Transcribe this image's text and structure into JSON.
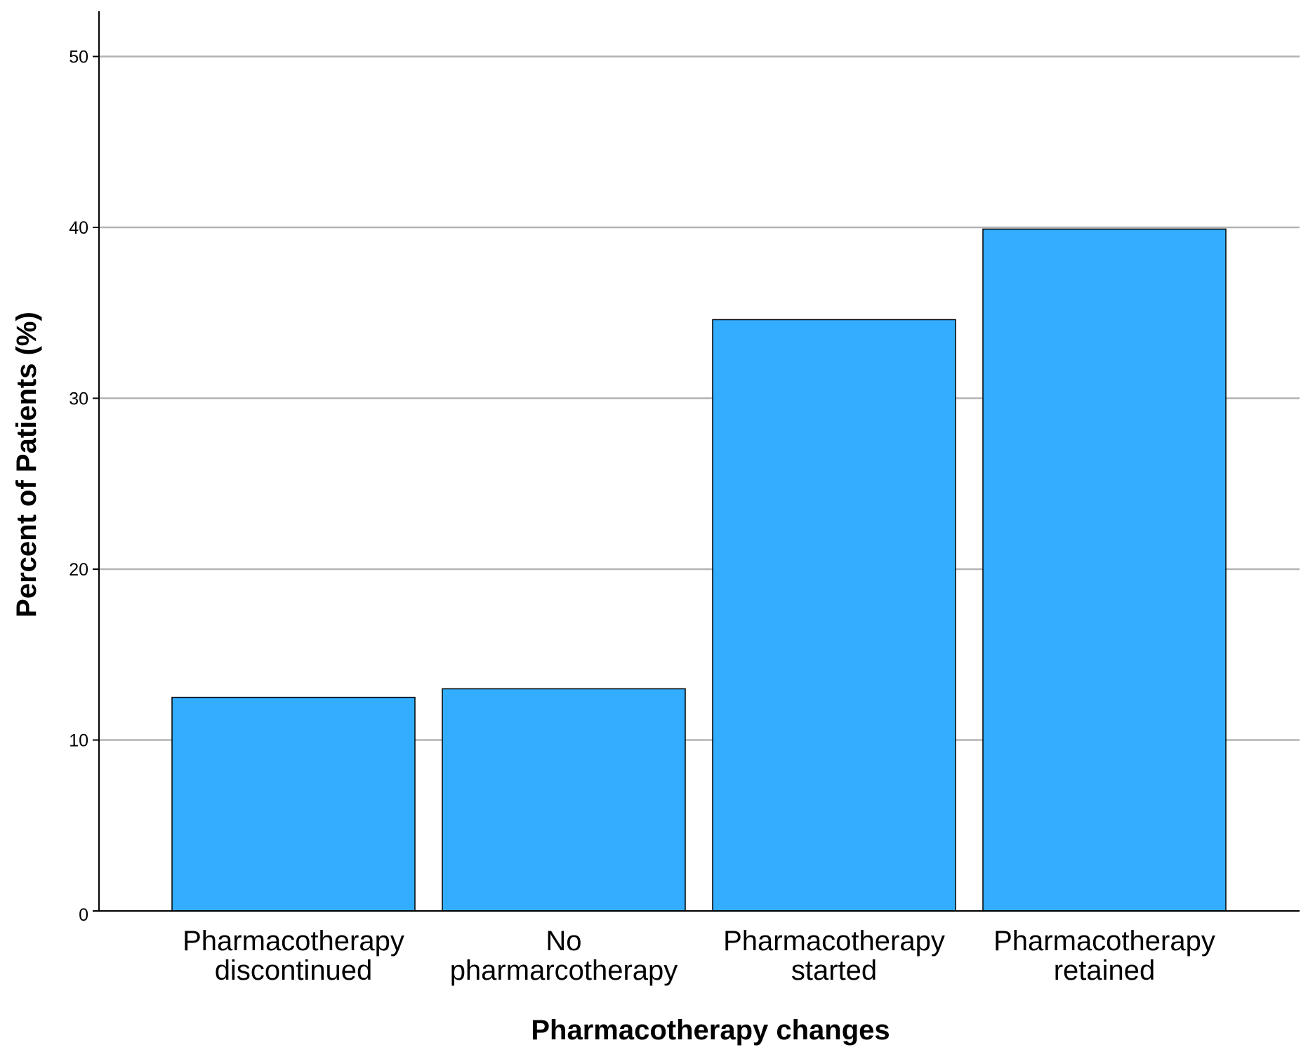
{
  "chart_data": {
    "type": "bar",
    "title": "",
    "xlabel": "Pharmacotherapy changes",
    "ylabel": "Percent of Patients (%)",
    "categories": [
      [
        "Pharmacotherapy",
        "discontinued"
      ],
      [
        "No",
        "pharmarcotherapy"
      ],
      [
        "Pharmacotherapy",
        "started"
      ],
      [
        "Pharmacotherapy",
        "retained"
      ]
    ],
    "values": [
      12.5,
      13.0,
      34.6,
      39.9
    ],
    "ylim": [
      0,
      52.6
    ],
    "yticks": [
      0,
      10,
      20,
      30,
      40,
      50
    ],
    "grid": true,
    "legend": "none",
    "colors": {
      "bar": "#33adff",
      "bar_edge": "#000000",
      "grid": "#b3b3b3",
      "axis": "#000000"
    }
  }
}
